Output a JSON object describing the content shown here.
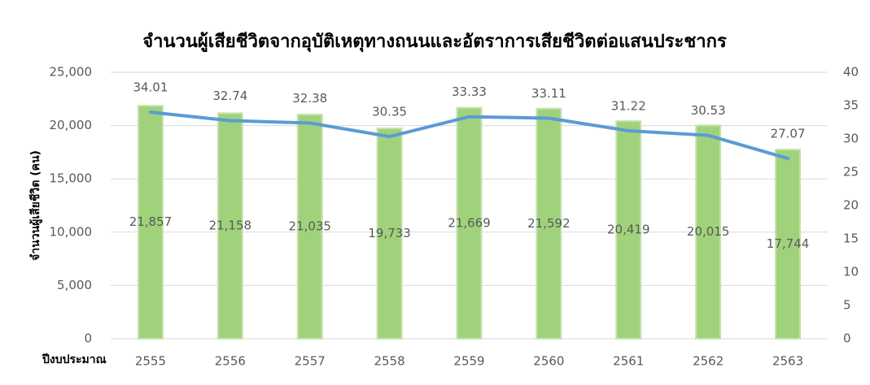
{
  "chart_data": {
    "type": "bar",
    "title": "จำนวนผู้เสียชีวิตจากอุบัติเหตุทางถนนและอัตราการเสียชีวิตต่อแสนประชากร",
    "y_label": "จำนวนผู้เสียชีวิต (คน)",
    "x_label": "ปีงบประมาณ",
    "categories": [
      "2555",
      "2556",
      "2557",
      "2558",
      "2559",
      "2560",
      "2561",
      "2562",
      "2563"
    ],
    "series": [
      {
        "type": "bar",
        "color": "#a0d27c",
        "values": [
          21857,
          21158,
          21035,
          19733,
          21669,
          21592,
          20419,
          20015,
          17744
        ],
        "value_labels": [
          "21,857",
          "21,158",
          "21,035",
          "19,733",
          "21,669",
          "21,592",
          "20,419",
          "20,015",
          "17,744"
        ]
      },
      {
        "type": "line",
        "axis": "y2",
        "color": "#5b9bd5",
        "values": [
          34.01,
          32.74,
          32.38,
          30.35,
          33.33,
          33.11,
          31.22,
          30.53,
          27.07
        ]
      }
    ],
    "ylim": [
      0,
      25000
    ],
    "yticks": [
      0,
      {
        "value": 5000,
        "label": "5,000"
      },
      {
        "value": 10000,
        "label": "10,000"
      },
      {
        "value": 15000,
        "label": "15,000"
      },
      {
        "value": 20000,
        "label": "20,000"
      },
      {
        "value": 25000,
        "label": "25,000"
      }
    ],
    "y2lim": [
      0,
      40
    ],
    "y2ticks": [
      0,
      5,
      10,
      15,
      20,
      25,
      30,
      35,
      40
    ],
    "grid": true
  }
}
